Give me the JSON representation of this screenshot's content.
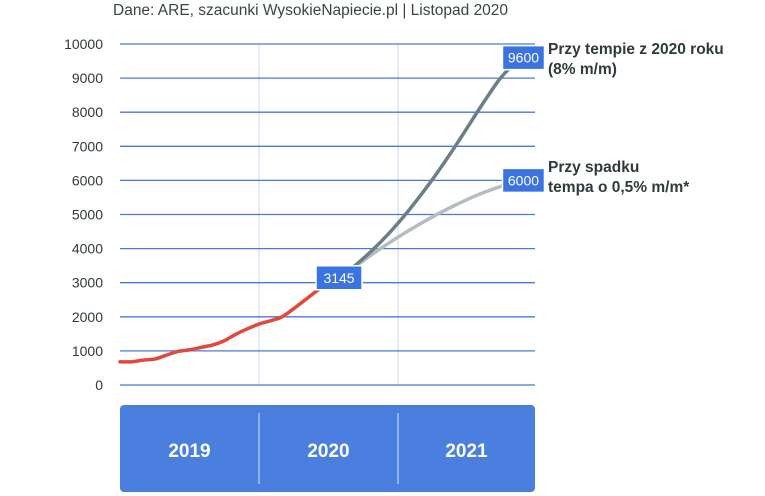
{
  "source": "Dane: ARE, szacunki WysokieNapiecie.pl | Listopad 2020",
  "colors": {
    "historical": "#e04a3c",
    "scenario_high": "#6b7f86",
    "scenario_low": "#b4bdbf",
    "grid": "#4a78d8",
    "badge": "#3b73e0",
    "year_band": "#4a7fe0"
  },
  "chart_data": {
    "type": "line",
    "x_unit": "months since Jan 2019",
    "years": [
      "2019",
      "2020",
      "2021"
    ],
    "ylim": [
      0,
      10000
    ],
    "yticks": [
      0,
      1000,
      2000,
      3000,
      4000,
      5000,
      6000,
      7000,
      8000,
      9000,
      10000
    ],
    "grid": true,
    "series": [
      {
        "name": "historical",
        "x": [
          0,
          1,
          2,
          3,
          4,
          5,
          6,
          7,
          8,
          9,
          10,
          11,
          12,
          13,
          14,
          15,
          16,
          17,
          18,
          19,
          20
        ],
        "y": [
          680,
          680,
          730,
          760,
          870,
          980,
          1030,
          1100,
          1170,
          1290,
          1480,
          1640,
          1780,
          1880,
          1990,
          2220,
          2480,
          2740,
          2980,
          3145,
          3145
        ]
      },
      {
        "name": "Przy tempie z 2020 roku (8% m/m)",
        "x": [
          19,
          20,
          21,
          22,
          23,
          24,
          25,
          26,
          27,
          28,
          29,
          30,
          31,
          32,
          33,
          34,
          35
        ],
        "y": [
          3145,
          3400,
          3680,
          3990,
          4330,
          4700,
          5100,
          5530,
          5980,
          6460,
          6960,
          7480,
          8010,
          8520,
          9000,
          9350,
          9600
        ]
      },
      {
        "name": "Przy spadku tempa o 0,5% m/m*",
        "x": [
          19,
          20,
          21,
          22,
          23,
          24,
          25,
          26,
          27,
          28,
          29,
          30,
          31,
          32,
          33,
          34,
          35
        ],
        "y": [
          3145,
          3380,
          3620,
          3860,
          4090,
          4310,
          4520,
          4720,
          4910,
          5090,
          5260,
          5420,
          5570,
          5700,
          5820,
          5920,
          6000
        ]
      }
    ],
    "labels": [
      {
        "value": "3145"
      },
      {
        "value": "9600"
      },
      {
        "value": "6000"
      }
    ],
    "annotations": [
      {
        "line1": "Przy tempie z 2020 roku",
        "line2": "(8% m/m)"
      },
      {
        "line1": "Przy spadku",
        "line2": "tempa o 0,5% m/m*"
      }
    ]
  }
}
